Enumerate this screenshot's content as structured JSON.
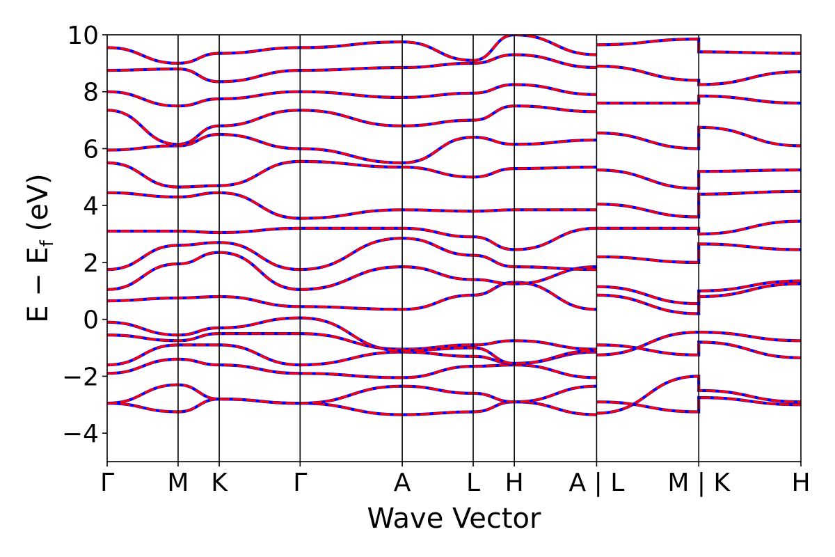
{
  "chart_data": {
    "type": "line",
    "title": "",
    "xlabel": "Wave Vector",
    "ylabel_main": "E − E",
    "ylabel_sub": "f",
    "ylabel_unit": " (eV)",
    "ylim": [
      -5,
      10
    ],
    "yticks": [
      -4,
      -2,
      0,
      2,
      4,
      6,
      8,
      10
    ],
    "ytick_labels": [
      "−4",
      "−2",
      "0",
      "2",
      "4",
      "6",
      "8",
      "10"
    ],
    "path_labels": [
      "Γ",
      "M",
      "K",
      "Γ",
      "A",
      "L",
      "H",
      "A | L",
      "M | K",
      "H"
    ],
    "path_positions": [
      0,
      0.5,
      0.79,
      1.36,
      2.08,
      2.58,
      2.87,
      3.45,
      4.17,
      4.89
    ],
    "segment_breaks": [
      3.45,
      4.17
    ],
    "grid": false,
    "legend": "none",
    "colors": {
      "series_a": "#ff0000",
      "series_b": "#0000ff",
      "axes": "#000000"
    },
    "series": [
      {
        "values_by_label": {
          "Γ": -2.95,
          "M": -3.25,
          "K": -2.8,
          "Γ2": -2.95,
          "A": -3.35,
          "L": -3.25,
          "H": -2.9,
          "A2": -3.35
        }
      },
      {
        "values_by_label": {
          "Γ": -2.95,
          "M": -2.3,
          "K": -2.8,
          "Γ2": -2.95,
          "A": -2.35,
          "L": -2.6,
          "H": -2.9,
          "A2": -2.35
        }
      },
      {
        "values_by_label": {
          "Γ": -1.9,
          "M": -1.4,
          "K": -1.6,
          "Γ2": -1.9,
          "A": -2.05,
          "L": -1.65,
          "H": -1.6,
          "A2": -2.05
        }
      },
      {
        "values_by_label": {
          "Γ": -1.6,
          "M": -0.9,
          "K": -0.9,
          "Γ2": -1.6,
          "A": -1.15,
          "L": -1.3,
          "H": -1.55,
          "A2": -1.15
        }
      },
      {
        "values_by_label": {
          "Γ": -0.55,
          "M": -0.75,
          "K": -0.5,
          "Γ2": -0.5,
          "A": -1.05,
          "L": -0.9,
          "H": -0.75,
          "A2": -1.05
        }
      },
      {
        "values_by_label": {
          "Γ": -0.1,
          "M": -0.55,
          "K": -0.3,
          "Γ2": 0.05,
          "A": -1.1,
          "L": -1.0,
          "H": -1.55,
          "A2": -1.1
        }
      },
      {
        "values_by_label": {
          "Γ": 0.65,
          "M": 0.75,
          "K": 0.8,
          "Γ2": 0.45,
          "A": 0.35,
          "L": 0.85,
          "H": 1.3,
          "A2": 0.35
        }
      },
      {
        "values_by_label": {
          "Γ": 1.05,
          "M": 1.95,
          "K": 2.35,
          "Γ2": 1.05,
          "A": 1.85,
          "L": 1.4,
          "H": 1.25,
          "A2": 1.85
        }
      },
      {
        "values_by_label": {
          "Γ": 1.75,
          "M": 2.6,
          "K": 2.7,
          "Γ2": 1.75,
          "A": 2.85,
          "L": 2.25,
          "H": 1.85,
          "A2": 1.75
        }
      },
      {
        "values_by_label": {
          "Γ": 3.1,
          "M": 3.1,
          "K": 3.05,
          "Γ2": 3.2,
          "A": 3.2,
          "L": 2.9,
          "H": 2.45,
          "A2": 3.2
        }
      },
      {
        "values_by_label": {
          "Γ": 4.45,
          "M": 4.3,
          "K": 4.45,
          "Γ2": 3.55,
          "A": 3.85,
          "L": 3.8,
          "H": 3.85,
          "A2": 3.85
        }
      },
      {
        "values_by_label": {
          "Γ": 5.5,
          "M": 4.65,
          "K": 4.7,
          "Γ2": 5.55,
          "A": 5.35,
          "L": 5.0,
          "H": 5.3,
          "A2": 5.35
        }
      },
      {
        "values_by_label": {
          "Γ": 5.95,
          "M": 6.1,
          "K": 6.5,
          "Γ2": 6.0,
          "A": 5.5,
          "L": 6.4,
          "H": 6.15,
          "A2": 6.3
        }
      },
      {
        "values_by_label": {
          "Γ": 7.35,
          "M": 6.15,
          "K": 6.8,
          "Γ2": 7.35,
          "A": 6.8,
          "L": 7.0,
          "H": 7.5,
          "A2": 7.3
        }
      },
      {
        "values_by_label": {
          "Γ": 8.0,
          "M": 7.5,
          "K": 7.75,
          "Γ2": 8.0,
          "A": 7.8,
          "L": 7.95,
          "H": 8.25,
          "A2": 7.9
        }
      },
      {
        "values_by_label": {
          "Γ": 8.75,
          "M": 8.8,
          "K": 8.35,
          "Γ2": 8.75,
          "A": 8.85,
          "L": 9.0,
          "H": 9.3,
          "A2": 8.85
        }
      },
      {
        "values_by_label": {
          "Γ": 9.55,
          "M": 9.0,
          "K": 9.35,
          "Γ2": 9.55,
          "A": 9.75,
          "L": 9.1,
          "H": 10.0,
          "A2": 9.3
        }
      },
      {
        "values_by_label": {
          "L2": -1.25,
          "M2": -0.45,
          "K2": -0.45,
          "H2": -0.75
        }
      },
      {
        "values_by_label": {
          "L2": -0.9,
          "M2": -1.25,
          "K2": -0.8,
          "H2": -1.35
        }
      },
      {
        "values_by_label": {
          "L2": -3.3,
          "M2": -2.0,
          "K2": -2.5,
          "H2": -2.9
        }
      },
      {
        "values_by_label": {
          "L2": -2.9,
          "M2": -3.25,
          "K2": -2.75,
          "H2": -3.0
        }
      },
      {
        "values_by_label": {
          "L2": 0.85,
          "M2": 0.2,
          "K2": 0.8,
          "H2": 1.25
        }
      },
      {
        "values_by_label": {
          "L2": 1.15,
          "M2": 0.55,
          "K2": 1.0,
          "H2": 1.35
        }
      },
      {
        "values_by_label": {
          "L2": 2.2,
          "M2": 2.0,
          "K2": 2.65,
          "H2": 2.45
        }
      },
      {
        "values_by_label": {
          "L2": 3.2,
          "M2": 3.2,
          "K2": 3.0,
          "H2": 3.45
        }
      },
      {
        "values_by_label": {
          "L2": 4.05,
          "M2": 3.6,
          "K2": 4.4,
          "H2": 4.5
        }
      },
      {
        "values_by_label": {
          "L2": 5.25,
          "M2": 4.6,
          "K2": 5.2,
          "H2": 5.25
        }
      },
      {
        "values_by_label": {
          "L2": 6.55,
          "M2": 6.0,
          "K2": 6.75,
          "H2": 6.1
        }
      },
      {
        "values_by_label": {
          "L2": 7.6,
          "M2": 7.6,
          "K2": 7.85,
          "H2": 7.6
        }
      },
      {
        "values_by_label": {
          "L2": 8.9,
          "M2": 8.4,
          "K2": 8.25,
          "H2": 8.7
        }
      },
      {
        "values_by_label": {
          "L2": 9.65,
          "M2": 9.85,
          "K2": 9.4,
          "H2": 9.35
        }
      }
    ]
  }
}
